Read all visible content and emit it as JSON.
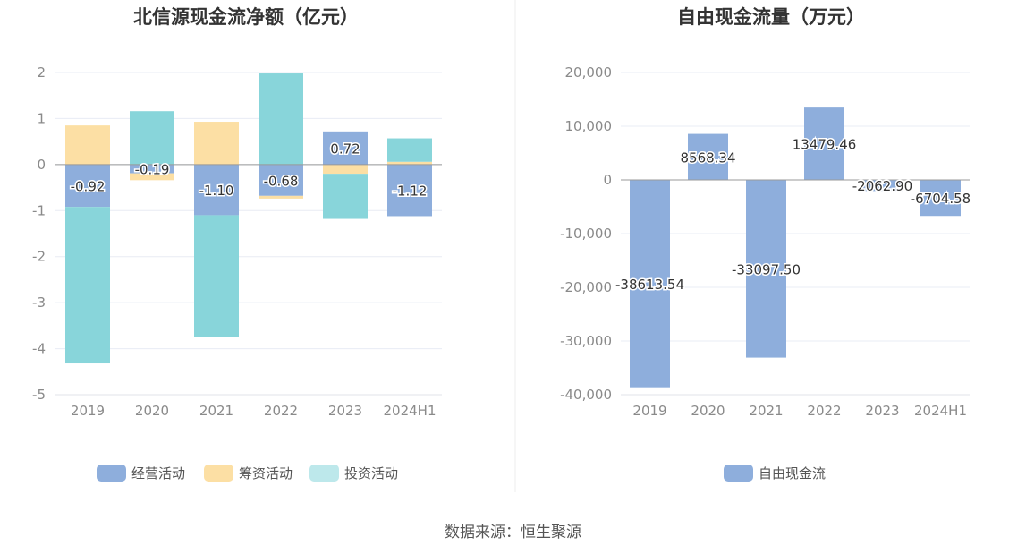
{
  "colors": {
    "operating": "#8eaedc",
    "financing": "#fcdfa4",
    "investing": "#88d5da",
    "investing_legend": "#bde8eb",
    "fcf": "#8eaedc",
    "grid": "#e8ecf4",
    "zero": "#999999"
  },
  "source": "数据来源：恒生聚源",
  "chart_data": [
    {
      "type": "bar",
      "stacked": true,
      "title": "北信源现金流净额（亿元）",
      "categories": [
        "2019",
        "2020",
        "2021",
        "2022",
        "2023",
        "2024H1"
      ],
      "ylim": [
        -5,
        2
      ],
      "yticks": [
        "2",
        "1",
        "0",
        "-1",
        "-2",
        "-3",
        "-4",
        "-5"
      ],
      "grid": true,
      "legend_position": "bottom",
      "series": [
        {
          "name": "经营活动",
          "values": [
            -0.92,
            -0.19,
            -1.1,
            -0.68,
            0.72,
            -1.12
          ]
        },
        {
          "name": "筹资活动",
          "values": [
            0.85,
            -0.15,
            0.93,
            -0.06,
            -0.2,
            0.06
          ]
        },
        {
          "name": "投资活动",
          "values": [
            -3.4,
            1.16,
            -2.64,
            1.98,
            -0.98,
            0.51
          ]
        }
      ],
      "data_labels": [
        "-0.92",
        "-0.19",
        "-1.10",
        "-0.68",
        "0.72",
        "-1.12"
      ]
    },
    {
      "type": "bar",
      "title": "自由现金流量（万元）",
      "categories": [
        "2019",
        "2020",
        "2021",
        "2022",
        "2023",
        "2024H1"
      ],
      "ylim": [
        -40000,
        20000
      ],
      "yticks": [
        "20,000",
        "10,000",
        "0",
        "-10,000",
        "-20,000",
        "-30,000",
        "-40,000"
      ],
      "grid": true,
      "legend_position": "bottom",
      "series": [
        {
          "name": "自由现金流",
          "values": [
            -38613.54,
            8568.34,
            -33097.5,
            13479.46,
            -2062.9,
            -6704.58
          ]
        }
      ],
      "data_labels": [
        "-38613.54",
        "8568.34",
        "-33097.50",
        "13479.46",
        "-2062.90",
        "-6704.58"
      ]
    }
  ]
}
